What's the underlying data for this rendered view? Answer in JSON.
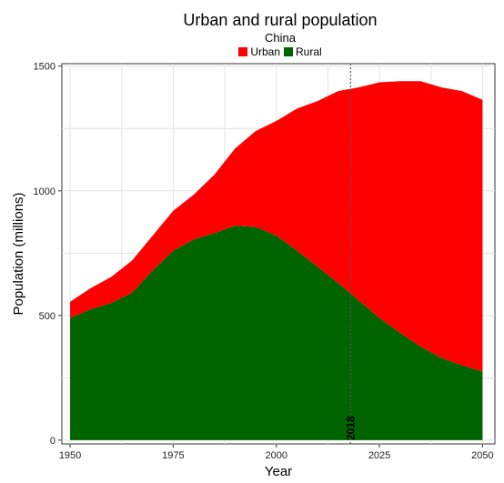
{
  "chart_data": {
    "type": "area",
    "title": "Urban and rural population",
    "subtitle": "China",
    "xlabel": "Year",
    "ylabel": "Population (millions)",
    "xlim": [
      1948,
      2053
    ],
    "ylim": [
      -15,
      1510
    ],
    "x_ticks": [
      1950,
      1975,
      2000,
      2025,
      2050
    ],
    "y_ticks": [
      0,
      500,
      1000,
      1500
    ],
    "x": [
      1950,
      1955,
      1960,
      1965,
      1970,
      1975,
      1980,
      1985,
      1990,
      1995,
      2000,
      2005,
      2010,
      2015,
      2020,
      2025,
      2030,
      2035,
      2040,
      2045,
      2050
    ],
    "series": [
      {
        "name": "Rural",
        "color": "#006400",
        "values": [
          490,
          525,
          550,
          590,
          680,
          760,
          805,
          830,
          860,
          855,
          820,
          760,
          695,
          630,
          560,
          490,
          430,
          375,
          330,
          300,
          275
        ]
      },
      {
        "name": "Urban",
        "color": "#FF0000",
        "values": [
          65,
          85,
          105,
          130,
          140,
          160,
          180,
          235,
          310,
          385,
          460,
          570,
          665,
          770,
          855,
          945,
          1010,
          1065,
          1085,
          1100,
          1090
        ]
      }
    ],
    "legend": {
      "position": "top",
      "entries": [
        "Urban",
        "Rural"
      ]
    },
    "grid": true,
    "marker": {
      "x": 2018,
      "label": "2018"
    }
  }
}
